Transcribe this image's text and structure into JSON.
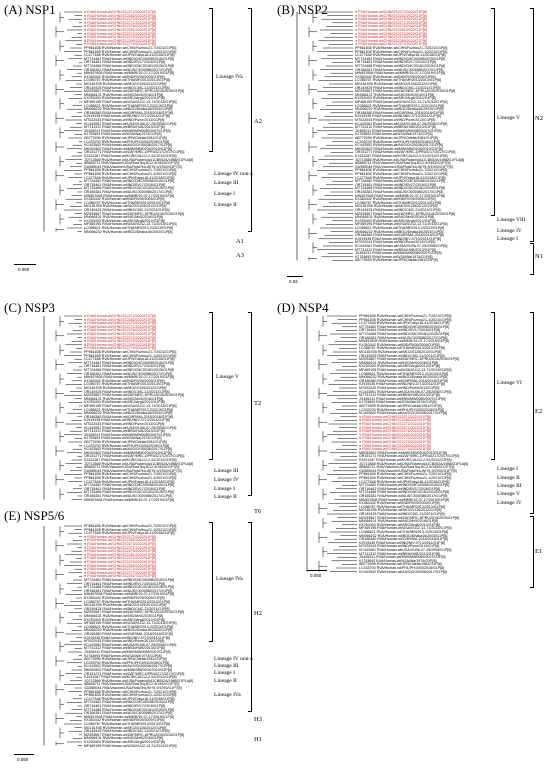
{
  "panels": {
    "a": {
      "title": "(A) NSP1",
      "scale": "0.050",
      "lineages": {
        "iva": "Lineage IVa",
        "iv_non_a": "Lineage IV non-a",
        "iii": "Lineage III",
        "i": "Lineage I",
        "ii": "Lineage II"
      },
      "genotypes": {
        "a2": "A2",
        "a1": "A1",
        "a3": "A3"
      }
    },
    "b": {
      "title": "(B) NSP2",
      "scale": "0.02",
      "lineages": {
        "v": "Lineage V",
        "viii": "Lineage VIII",
        "iv": "Lineage IV",
        "i": "Lineage I"
      },
      "genotypes": {
        "n2": "N2",
        "n1": "N1"
      }
    },
    "c": {
      "title": "(C) NSP3",
      "scale": "0.050",
      "lineages": {
        "v": "Lineage V",
        "iii": "Lineage III",
        "iv": "Lineage IV",
        "i": "Lineage I",
        "ii": "Lineage II"
      },
      "genotypes": {
        "t2": "T2",
        "t6": "T6",
        "t1": "T1"
      }
    },
    "d": {
      "title": "(D) NSP4",
      "scale": "0.050",
      "lineages": {
        "vi": "Lineage VI",
        "i": "Lineage I",
        "ii": "Lineage II",
        "iii": "Lineage III",
        "v": "Lineage V",
        "iv": "Lineage IV"
      },
      "genotypes": {
        "e2": "E2",
        "e1": "E1"
      }
    },
    "e": {
      "title": "(E) NSP5/6",
      "scale": "0.050",
      "lineages": {
        "iva": "Lineage IVa",
        "iv_non_a": "Lineage IV non-a",
        "iii": "Lineage III",
        "i": "Lineage I",
        "ii": "Lineage II",
        "iva2": "Lineage IVa"
      },
      "genotypes": {
        "h2": "H2",
        "h3": "H3",
        "h1": "H1"
      }
    }
  },
  "leaf_labels": {
    "red": [
      "RVA/Human-wt/CHN/GS2272/2022/G1P[8]",
      "RVA/Human-wt/CHN/GS2282/2022/G1P[8]",
      "RVA/Human-wt/CHN/GS2273/2022/G1P[8]",
      "RVA/Human-wt/CHN/GS2271/2022/G1P[8]",
      "RVA/Human-wt/CHN/GS2276/2022/G1P[8]",
      "RVA/Human-wt/CHN/GS2281/2022/G1P[8]",
      "RVA/Human-wt/CHN/GS2270/2022/G1P[8]",
      "RVA/Human-wt/CHN/GS2275/2022/G1P[8]",
      "RVA/Human-wt/CHN/GS2269/2022/G1P[8]",
      "RVA/Human-wt/CHN/GS2274/2022/G1P[8]"
    ],
    "black": [
      "PP861836 RVA/Human-wt/CHN/Fuzhou21-7/2021/G1P[8]",
      "PP861835 RVA/Human-wt/CHN/Fuzhou21-1/2021/G1P[8]",
      "LC477648 RVA/Human-wt/JPN/Tokyo18-41/2018/G1P[8]",
      "MT724462 RVA/Human-wt/IND/CMC00098/2015/G1P[8]",
      "OR716461 RVA/Human-wt/IND/RV17/2016/G1P[8]",
      "MT724468 RVA/Human-wt/IND/CMC00181/2015/G1P[8]",
      "OR166381 RVA/Human-wt/AUS/CK00086/2017/G1P[8]",
      "MW457608 RVA/Human-wt/MMR/19-07-17/2019/G1P[8]",
      "KX363442 RVA/Human-wt/IND/RV09/2009/G1P[8]",
      "LC086767 RVA/Human-wt/THA/MR2013/2013/G1P[8]",
      "MG181935 RVA/Human-wt/MOZ/0126/2012/G1P[8]",
      "OR149425 RVA/Human-wt/IND/CMC-21/2021/G1P[8]",
      "MZ093667 RVA/Human-wt/ZAF/MRC-DPRU2015/2015/G1P[8]",
      "MN066101 RVA/Human-wt/NIC/Mx5/2016/G1P[8]",
      "KX253403 RVA/Human-wt/ARG/Arg6/2012/G1P[8]",
      "MF469195 RVA/Human-wt/USA/VU12-13-71/2013/G1P[8]",
      "LC086621 RVA/Human-wt/THA/MR2013-2/2013/G1P[8]",
      "MN066232 RVA/Human-wt/BGD/Dhaka16/2003/G1P[8]",
      "OR166380 RVA/Human-wt/CMR/MA-2018/2018/G1P[8]",
      "KJ919435 RVA/Human-wt/IND/NIV-0713/2011/G1P[8]",
      "MT022043 RVA/Human-wt/IND/Pune/2013/G1P[8]",
      "KC443061 RVA/Human-wt/USA/VU06-07-25/2006/G1P[8]",
      "MT741312 RVA/Human-wt/BRA/HUB/2013/G1P[8]",
      "JX406241 RVA/Human-wt/MWI/MW0089/2007/G1P[8]",
      "KJ753693 RVA/Human-wt/USA/Wa/1974/G1P[8]",
      "AB770099 RVA/Human-wt/JPN/Odelia/1981/G1P[8]",
      "LC433700 RVA/Human-wt/PHL/PH1093/2018/G1P[8]",
      "KC443502 RVA/Human-wt/AUS/CK00036/2017/G1P[8]",
      "MK052802 RVA/Human-wt/MWI/MW0204/2010/G1P[8]",
      "OR151271 RVA/Human-wt/ZAF/MRC-DPRU0217/2017/G1P[8]",
      "KJ431287 RVA/Human-wt/KOR/CAU12-2-51/2012/G1P[8]",
      "JQ713568 RVA/Human-wt/USA/Rotarix/A41CB052A/1988/G1P1A[8]",
      "AB855711 RVA/Vaccine/USA/RotaTeq-BC2-9/1992/G1P7[5]",
      "GU565044 RVA/Vaccine/USA/RotaTeq-WI79-9/1992/G1P7[5]"
    ]
  }
}
